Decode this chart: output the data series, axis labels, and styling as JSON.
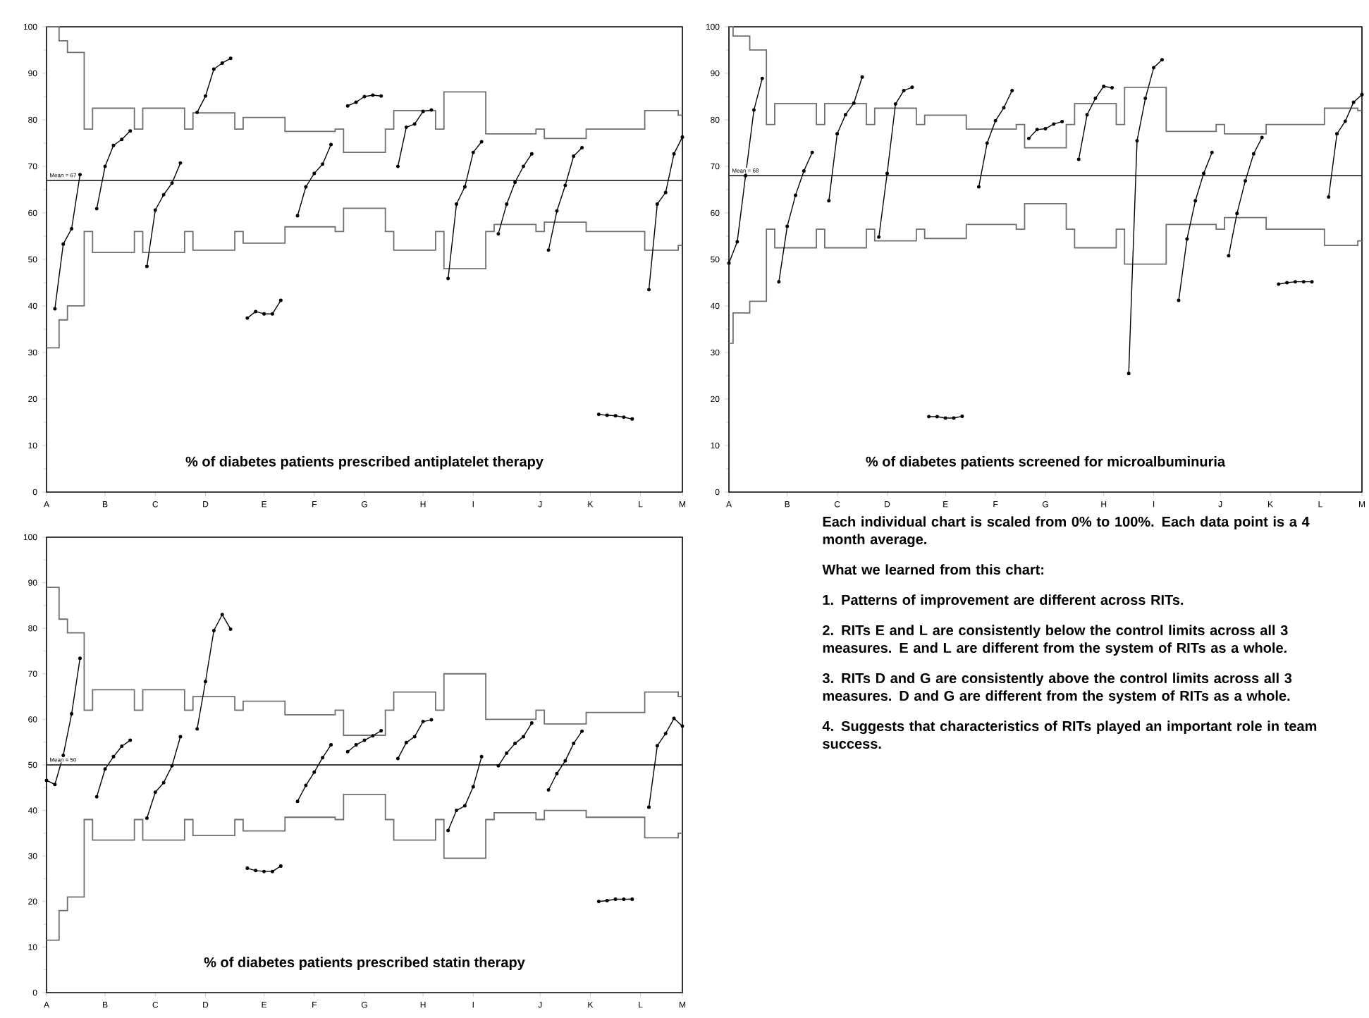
{
  "chart_data": [
    {
      "type": "line",
      "title": "% of diabetes patients prescribed antiplatelet therapy",
      "marker": "circle",
      "categories": [
        "A",
        null,
        null,
        null,
        null,
        null,
        null,
        "B",
        null,
        null,
        null,
        null,
        null,
        "C",
        null,
        null,
        null,
        null,
        null,
        "D",
        null,
        null,
        null,
        null,
        null,
        null,
        "E",
        null,
        null,
        null,
        null,
        null,
        "F",
        null,
        null,
        null,
        null,
        null,
        "G",
        null,
        null,
        null,
        null,
        null,
        null,
        "H",
        null,
        null,
        null,
        null,
        null,
        "I",
        null,
        null,
        null,
        null,
        null,
        null,
        null,
        "J",
        null,
        null,
        null,
        null,
        null,
        "K",
        null,
        null,
        null,
        null,
        null,
        "L",
        null,
        null,
        null,
        null,
        "M"
      ],
      "ylim": [
        0,
        100
      ],
      "yticks": [
        0,
        10,
        20,
        30,
        40,
        50,
        60,
        70,
        80,
        90,
        100
      ],
      "ref_lines": [
        {
          "axis": "y",
          "value": 67,
          "label": "Mean = 67"
        }
      ],
      "series": [
        {
          "type": "step",
          "marker": "none",
          "color": "#707070",
          "values": [
            100,
            100,
            97,
            94.5,
            94.5,
            78,
            82.5,
            82.5,
            82.5,
            82.5,
            82.5,
            78,
            82.5,
            82.5,
            82.5,
            82.5,
            82.5,
            78,
            81.5,
            81.5,
            81.5,
            81.5,
            81.5,
            78,
            80.5,
            80.5,
            80.5,
            80.5,
            80.5,
            77.5,
            77.5,
            77.5,
            77.5,
            77.5,
            77.5,
            78,
            73,
            73,
            73,
            73,
            73,
            78,
            82,
            82,
            82,
            82,
            82,
            78,
            86,
            86,
            86,
            86,
            86,
            77,
            77,
            77,
            77,
            77,
            77,
            78,
            76,
            76,
            76,
            76,
            76,
            78,
            78,
            78,
            78,
            78,
            78,
            78,
            82,
            82,
            82,
            82,
            81
          ]
        },
        {
          "type": "step",
          "marker": "none",
          "color": "#707070",
          "values": [
            31,
            31,
            37,
            40,
            40,
            56,
            51.5,
            51.5,
            51.5,
            51.5,
            51.5,
            56,
            51.5,
            51.5,
            51.5,
            51.5,
            51.5,
            56,
            52,
            52,
            52,
            52,
            52,
            56,
            53.5,
            53.5,
            53.5,
            53.5,
            53.5,
            57,
            57,
            57,
            57,
            57,
            57,
            56,
            61,
            61,
            61,
            61,
            61,
            56,
            52,
            52,
            52,
            52,
            52,
            56,
            48,
            48,
            48,
            48,
            48,
            56,
            57.5,
            57.5,
            57.5,
            57.5,
            57.5,
            56,
            58,
            58,
            58,
            58,
            58,
            56,
            56,
            56,
            56,
            56,
            56,
            56,
            52,
            52,
            52,
            52,
            53
          ]
        },
        {
          "color": "#000000",
          "values": [
            null,
            39.4,
            53.3,
            56.6,
            68.2,
            null,
            60.9,
            70,
            74.5,
            75.8,
            77.6,
            null,
            48.5,
            60.6,
            63.9,
            66.4,
            70.7,
            null,
            81.6,
            85.1,
            90.9,
            92.2,
            93.2,
            null,
            37.4,
            38.8,
            38.3,
            38.3,
            41.2,
            null,
            59.4,
            65.6,
            68.5,
            70.5,
            74.7,
            null,
            83,
            83.8,
            85,
            85.3,
            85.1,
            null,
            70,
            78.4,
            79.1,
            81.8,
            82.1,
            null,
            45.9,
            61.9,
            65.6,
            73,
            75.3,
            null,
            55.5,
            61.9,
            66.6,
            70,
            72.7,
            null,
            52,
            60.4,
            65.9,
            72.2,
            74,
            null,
            16.7,
            16.5,
            16.4,
            16.1,
            15.7,
            null,
            43.5,
            61.9,
            64.4,
            72.7,
            76.3
          ]
        }
      ]
    },
    {
      "type": "line",
      "title": "% of diabetes patients screened for microalbuminuria",
      "marker": "circle",
      "categories": [
        "A",
        null,
        null,
        null,
        null,
        null,
        null,
        "B",
        null,
        null,
        null,
        null,
        null,
        "C",
        null,
        null,
        null,
        null,
        null,
        "D",
        null,
        null,
        null,
        null,
        null,
        null,
        "E",
        null,
        null,
        null,
        null,
        null,
        "F",
        null,
        null,
        null,
        null,
        null,
        "G",
        null,
        null,
        null,
        null,
        null,
        null,
        "H",
        null,
        null,
        null,
        null,
        null,
        "I",
        null,
        null,
        null,
        null,
        null,
        null,
        null,
        "J",
        null,
        null,
        null,
        null,
        null,
        "K",
        null,
        null,
        null,
        null,
        null,
        "L",
        null,
        null,
        null,
        null,
        "M"
      ],
      "ylim": [
        0,
        100
      ],
      "yticks": [
        0,
        10,
        20,
        30,
        40,
        50,
        60,
        70,
        80,
        90,
        100
      ],
      "ref_lines": [
        {
          "axis": "y",
          "value": 68,
          "label": "Mean = 68"
        }
      ],
      "series": [
        {
          "type": "step",
          "marker": "none",
          "color": "#707070",
          "values": [
            100,
            98,
            98,
            95,
            95,
            79,
            83.5,
            83.5,
            83.5,
            83.5,
            83.5,
            79,
            83.5,
            83.5,
            83.5,
            83.5,
            83.5,
            79,
            82.5,
            82.5,
            82.5,
            82.5,
            82.5,
            79,
            81,
            81,
            81,
            81,
            81,
            78,
            78,
            78,
            78,
            78,
            78,
            79,
            74,
            74,
            74,
            74,
            74,
            79,
            83.5,
            83.5,
            83.5,
            83.5,
            83.5,
            79,
            87,
            87,
            87,
            87,
            87,
            77.5,
            77.5,
            77.5,
            77.5,
            77.5,
            77.5,
            79,
            77,
            77,
            77,
            77,
            77,
            79,
            79,
            79,
            79,
            79,
            79,
            79,
            82.5,
            82.5,
            82.5,
            82.5,
            82
          ]
        },
        {
          "type": "step",
          "marker": "none",
          "color": "#707070",
          "values": [
            32,
            38.5,
            38.5,
            41,
            41,
            56.5,
            52.5,
            52.5,
            52.5,
            52.5,
            52.5,
            56.5,
            52.5,
            52.5,
            52.5,
            52.5,
            52.5,
            56.5,
            54,
            54,
            54,
            54,
            54,
            56.5,
            54.5,
            54.5,
            54.5,
            54.5,
            54.5,
            57.5,
            57.5,
            57.5,
            57.5,
            57.5,
            57.5,
            56.5,
            62,
            62,
            62,
            62,
            62,
            56.5,
            52.5,
            52.5,
            52.5,
            52.5,
            52.5,
            56.5,
            49,
            49,
            49,
            49,
            49,
            57.5,
            57.5,
            57.5,
            57.5,
            57.5,
            57.5,
            56.5,
            59,
            59,
            59,
            59,
            59,
            56.5,
            56.5,
            56.5,
            56.5,
            56.5,
            56.5,
            56.5,
            53,
            53,
            53,
            53,
            54
          ]
        },
        {
          "color": "#000000",
          "values": [
            49.2,
            53.8,
            68,
            82.1,
            88.9,
            null,
            45.2,
            57.1,
            63.8,
            69,
            73,
            null,
            62.6,
            77,
            81.1,
            83.6,
            89.2,
            null,
            54.8,
            68.5,
            83.4,
            86.3,
            87,
            null,
            16.2,
            16.2,
            15.9,
            15.9,
            16.3,
            null,
            65.6,
            75,
            79.8,
            82.6,
            86.3,
            null,
            76,
            77.9,
            78.1,
            79.1,
            79.6,
            null,
            71.5,
            81.1,
            84.6,
            87.2,
            86.9,
            null,
            25.5,
            75.5,
            84.6,
            91.2,
            92.9,
            null,
            41.2,
            54.4,
            62.6,
            68.5,
            73,
            null,
            50.8,
            59.9,
            66.9,
            72.7,
            76.2,
            null,
            44.7,
            45,
            45.2,
            45.2,
            45.2,
            null,
            63.4,
            77,
            79.7,
            83.8,
            85.4
          ]
        }
      ]
    },
    {
      "type": "line",
      "title": "% of diabetes patients prescribed statin therapy",
      "marker": "circle",
      "categories": [
        "A",
        null,
        null,
        null,
        null,
        null,
        null,
        "B",
        null,
        null,
        null,
        null,
        null,
        "C",
        null,
        null,
        null,
        null,
        null,
        "D",
        null,
        null,
        null,
        null,
        null,
        null,
        "E",
        null,
        null,
        null,
        null,
        null,
        "F",
        null,
        null,
        null,
        null,
        null,
        "G",
        null,
        null,
        null,
        null,
        null,
        null,
        "H",
        null,
        null,
        null,
        null,
        null,
        "I",
        null,
        null,
        null,
        null,
        null,
        null,
        null,
        "J",
        null,
        null,
        null,
        null,
        null,
        "K",
        null,
        null,
        null,
        null,
        null,
        "L",
        null,
        null,
        null,
        null,
        "M"
      ],
      "ylim": [
        0,
        100
      ],
      "yticks": [
        0,
        10,
        20,
        30,
        40,
        50,
        60,
        70,
        80,
        90,
        100
      ],
      "ref_lines": [
        {
          "axis": "y",
          "value": 50,
          "label": "Mean = 50"
        }
      ],
      "series": [
        {
          "type": "step",
          "marker": "none",
          "color": "#707070",
          "values": [
            89,
            89,
            82,
            79,
            79,
            62,
            66.5,
            66.5,
            66.5,
            66.5,
            66.5,
            62,
            66.5,
            66.5,
            66.5,
            66.5,
            66.5,
            62,
            65,
            65,
            65,
            65,
            65,
            62,
            64,
            64,
            64,
            64,
            64,
            61,
            61,
            61,
            61,
            61,
            61,
            62,
            56.5,
            56.5,
            56.5,
            56.5,
            56.5,
            62,
            66,
            66,
            66,
            66,
            66,
            62,
            70,
            70,
            70,
            70,
            70,
            60,
            60,
            60,
            60,
            60,
            60,
            62,
            59,
            59,
            59,
            59,
            59,
            61.5,
            61.5,
            61.5,
            61.5,
            61.5,
            61.5,
            61.5,
            66,
            66,
            66,
            66,
            65
          ]
        },
        {
          "type": "step",
          "marker": "none",
          "color": "#707070",
          "values": [
            11.5,
            11.5,
            18,
            21,
            21,
            38,
            33.5,
            33.5,
            33.5,
            33.5,
            33.5,
            38,
            33.5,
            33.5,
            33.5,
            33.5,
            33.5,
            38,
            34.5,
            34.5,
            34.5,
            34.5,
            34.5,
            38,
            35.5,
            35.5,
            35.5,
            35.5,
            35.5,
            38.5,
            38.5,
            38.5,
            38.5,
            38.5,
            38.5,
            38,
            43.5,
            43.5,
            43.5,
            43.5,
            43.5,
            38,
            33.5,
            33.5,
            33.5,
            33.5,
            33.5,
            38,
            29.5,
            29.5,
            29.5,
            29.5,
            29.5,
            38,
            39.5,
            39.5,
            39.5,
            39.5,
            39.5,
            38,
            40,
            40,
            40,
            40,
            40,
            38.5,
            38.5,
            38.5,
            38.5,
            38.5,
            38.5,
            38.5,
            34,
            34,
            34,
            34,
            35
          ]
        },
        {
          "color": "#000000",
          "values": [
            46.6,
            45.7,
            52.1,
            61.2,
            73.4,
            null,
            43,
            49.1,
            51.8,
            54.1,
            55.4,
            null,
            38.3,
            44,
            46.1,
            49.8,
            56.2,
            null,
            57.9,
            68.3,
            79.5,
            83,
            79.8,
            null,
            27.3,
            26.8,
            26.6,
            26.6,
            27.8,
            null,
            42,
            45.5,
            48.4,
            51.6,
            54.4,
            null,
            52.9,
            54.4,
            55.4,
            56.4,
            57.5,
            null,
            51.4,
            54.9,
            56.2,
            59.5,
            59.9,
            null,
            35.6,
            40,
            41,
            45.2,
            51.8,
            null,
            49.8,
            52.6,
            54.7,
            56.2,
            59.2,
            null,
            44.5,
            48.1,
            50.9,
            54.7,
            57.4,
            null,
            20,
            20.2,
            20.5,
            20.5,
            20.5,
            null,
            40.7,
            54.2,
            56.9,
            60.2,
            58.5
          ]
        }
      ]
    },
    {
      "type": "other",
      "annotations": [
        "Each individual chart is scaled from 0% to 100%. Each data point is a 4 month average.",
        "What we learned from this chart:",
        "1. Patterns of improvement are different across RITs.",
        "2. RITs E and L are consistently below the control limits across all 3 measures. E and L are different from the system of RITs as a whole.",
        "3. RITs D and G are consistently above the control limits across all 3 measures. D and G are different from the system of RITs as a whole.",
        "4. Suggests that characteristics of RITs played an important role in team success."
      ]
    }
  ]
}
